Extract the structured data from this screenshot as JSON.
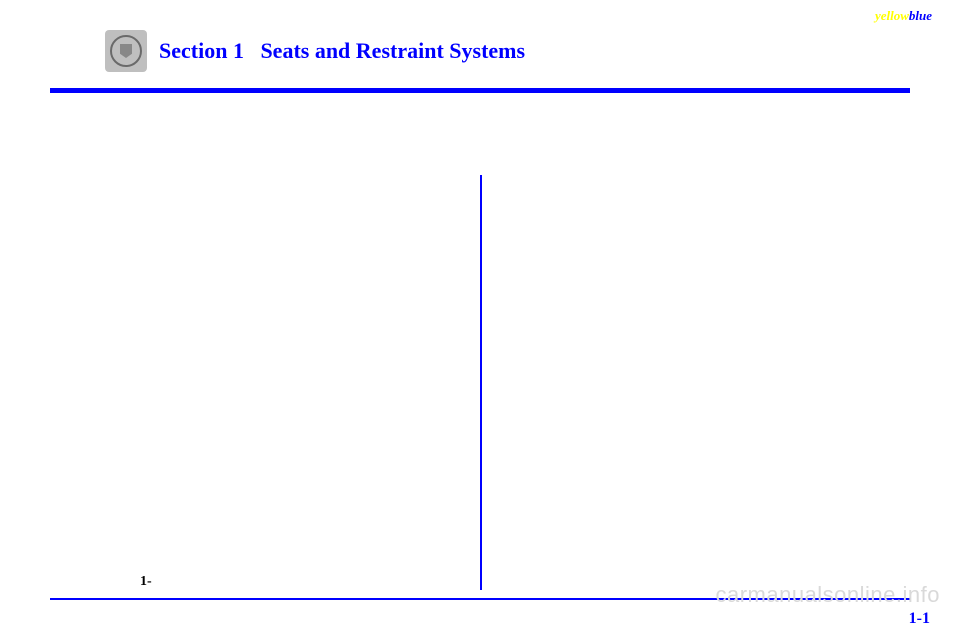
{
  "corner": {
    "yellow": "yellow",
    "blue": "blue"
  },
  "header": {
    "title": "Section 1   Seats and Restraint Systems"
  },
  "footer": {
    "left_marker": "1-",
    "page_number": "1-1"
  },
  "watermark": {
    "text": "carmanualsonline.info"
  },
  "colors": {
    "accent": "#0000ff",
    "yellow": "#ffff00",
    "watermark": "#d9d9d9",
    "bg": "#ffffff"
  }
}
